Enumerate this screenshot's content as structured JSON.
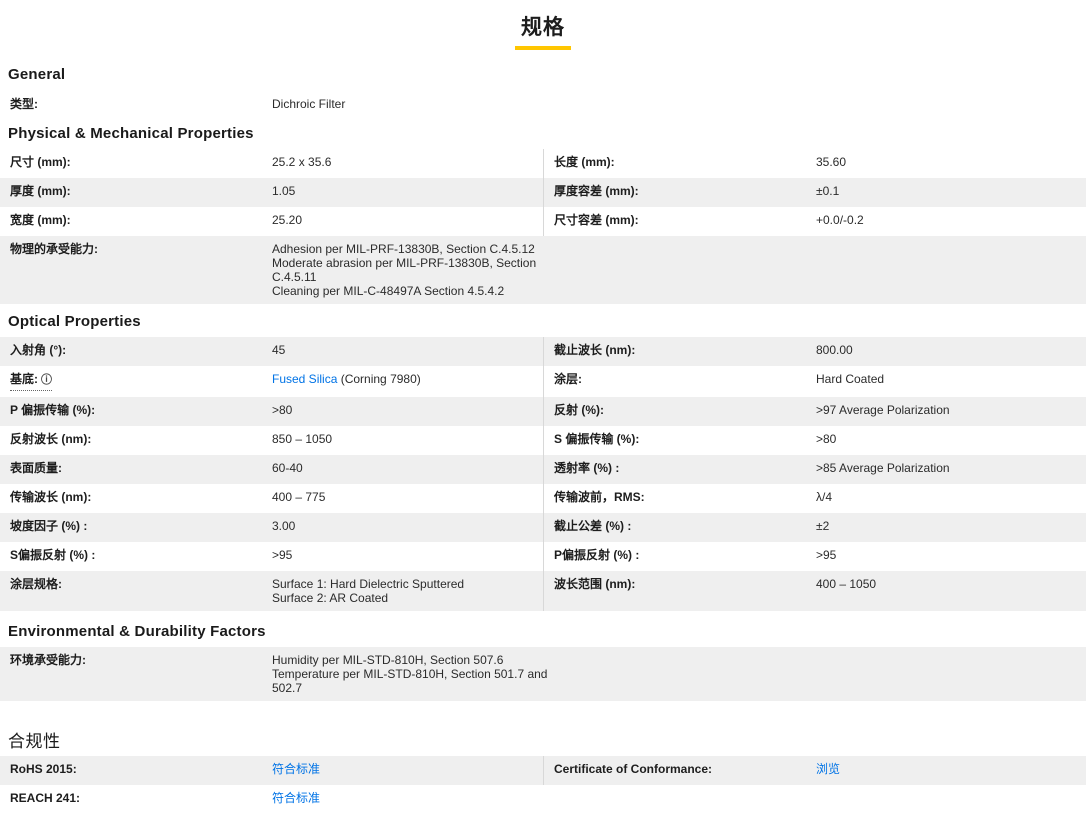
{
  "page_title": "规格",
  "colors": {
    "accent_underline": "#ffc600",
    "link_blue": "#0073e6",
    "row_gray": "#efefef",
    "divider": "#d8d8d8",
    "text_dark": "#1d1d1d"
  },
  "icons": {
    "info": "ⓘ"
  },
  "sections": [
    {
      "id": "general",
      "heading": "General",
      "rows": [
        {
          "bg": "white",
          "cells": [
            {
              "full": true,
              "label": "类型:",
              "value": "Dichroic Filter"
            }
          ]
        }
      ]
    },
    {
      "id": "physical",
      "heading": "Physical & Mechanical Properties",
      "rows": [
        {
          "bg": "white",
          "cells": [
            {
              "label": "尺寸 (mm):",
              "value": "25.2 x 35.6"
            },
            {
              "label": "长度 (mm):",
              "value": "35.60"
            }
          ]
        },
        {
          "bg": "gray",
          "cells": [
            {
              "label": "厚度 (mm):",
              "value": "1.05"
            },
            {
              "label": "厚度容差 (mm):",
              "value": "±0.1"
            }
          ]
        },
        {
          "bg": "white",
          "cells": [
            {
              "label": "宽度 (mm):",
              "value": "25.20"
            },
            {
              "label": "尺寸容差 (mm):",
              "value": "+0.0/-0.2"
            }
          ]
        },
        {
          "bg": "gray",
          "cells": [
            {
              "full": true,
              "label": "物理的承受能力:",
              "value_lines": [
                "Adhesion per MIL-PRF-13830B, Section C.4.5.12",
                "Moderate abrasion per MIL-PRF-13830B, Section",
                "C.4.5.11",
                "Cleaning per MIL-C-48497A Section 4.5.4.2"
              ]
            }
          ]
        }
      ]
    },
    {
      "id": "optical",
      "heading": "Optical Properties",
      "rows": [
        {
          "bg": "gray",
          "cells": [
            {
              "label": "入射角 (°):",
              "value": "45"
            },
            {
              "label": "截止波长 (nm):",
              "value": "800.00"
            }
          ]
        },
        {
          "bg": "white",
          "cells": [
            {
              "label": "基底:",
              "dotted": true,
              "info": true,
              "value_parts": [
                {
                  "text": "Fused Silica",
                  "link": true
                },
                {
                  "text": " (Corning 7980)"
                }
              ]
            },
            {
              "label": "涂层:",
              "value": "Hard Coated"
            }
          ]
        },
        {
          "bg": "gray",
          "cells": [
            {
              "label": "P 偏振传输 (%):",
              "value": ">80"
            },
            {
              "label": "反射 (%):",
              "value": ">97 Average Polarization"
            }
          ]
        },
        {
          "bg": "white",
          "cells": [
            {
              "label": "反射波长 (nm):",
              "value": "850 – 1050"
            },
            {
              "label": "S 偏振传输 (%):",
              "value": ">80"
            }
          ]
        },
        {
          "bg": "gray",
          "cells": [
            {
              "label": "表面质量:",
              "value": "60-40"
            },
            {
              "label": "透射率 (%) :",
              "value": ">85 Average Polarization"
            }
          ]
        },
        {
          "bg": "white",
          "cells": [
            {
              "label": "传输波长 (nm):",
              "value": "400 – 775"
            },
            {
              "label": "传输波前，RMS:",
              "value": "λ/4"
            }
          ]
        },
        {
          "bg": "gray",
          "cells": [
            {
              "label": "坡度因子 (%) :",
              "value": "3.00"
            },
            {
              "label": "截止公差 (%) :",
              "value": "±2"
            }
          ]
        },
        {
          "bg": "white",
          "cells": [
            {
              "label": "S偏振反射 (%) :",
              "value": ">95"
            },
            {
              "label": "P偏振反射 (%) :",
              "value": ">95"
            }
          ]
        },
        {
          "bg": "gray",
          "cells": [
            {
              "label": "涂层规格:",
              "value_lines": [
                "Surface 1: Hard Dielectric Sputtered",
                "Surface 2: AR Coated"
              ]
            },
            {
              "label": "波长范围 (nm):",
              "value": "400 – 1050"
            }
          ]
        }
      ]
    },
    {
      "id": "environmental",
      "heading": "Environmental & Durability Factors",
      "rows": [
        {
          "bg": "gray",
          "cells": [
            {
              "full": true,
              "label": "环境承受能力:",
              "value_lines": [
                "Humidity per MIL-STD-810H, Section 507.6",
                "Temperature per MIL-STD-810H, Section 501.7 and",
                "502.7"
              ]
            }
          ]
        }
      ]
    },
    {
      "id": "compliance",
      "heading": "合规性",
      "cn": true,
      "rows": [
        {
          "bg": "gray",
          "cells": [
            {
              "label": "RoHS 2015:",
              "value_parts": [
                {
                  "text": "符合标准",
                  "link": true
                }
              ]
            },
            {
              "label": "Certificate of Conformance:",
              "value_parts": [
                {
                  "text": "浏览",
                  "link": true
                }
              ]
            }
          ]
        },
        {
          "bg": "white",
          "cells": [
            {
              "full": true,
              "label": "REACH 241:",
              "value_parts": [
                {
                  "text": "符合标准",
                  "link": true
                }
              ]
            }
          ]
        }
      ]
    }
  ]
}
